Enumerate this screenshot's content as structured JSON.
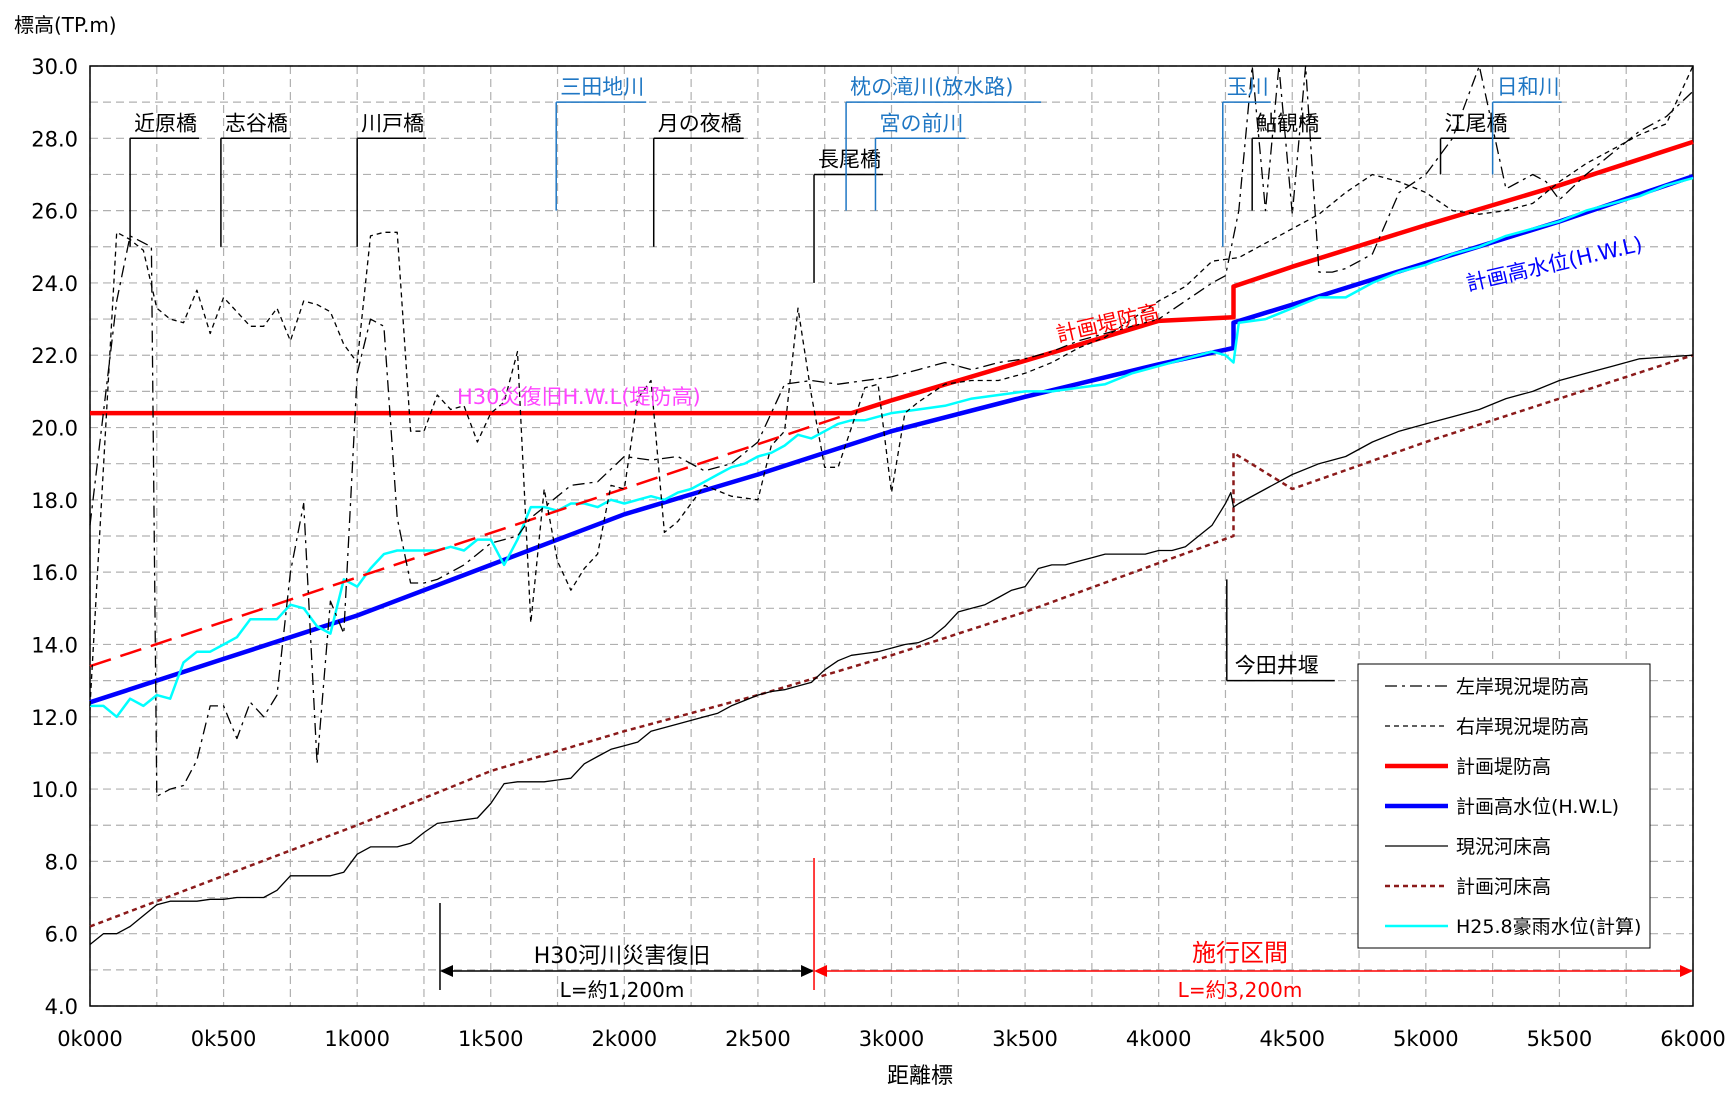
{
  "chart_data": {
    "type": "line",
    "ylabel": "標高(TP.m)",
    "xlabel": "距離標",
    "xlim": [
      0,
      6000
    ],
    "ylim": [
      4.0,
      30.0
    ],
    "grid": true,
    "x_ticks": [
      {
        "value": 0,
        "label": "0k000"
      },
      {
        "value": 500,
        "label": "0k500"
      },
      {
        "value": 1000,
        "label": "1k000"
      },
      {
        "value": 1500,
        "label": "1k500"
      },
      {
        "value": 2000,
        "label": "2k000"
      },
      {
        "value": 2500,
        "label": "2k500"
      },
      {
        "value": 3000,
        "label": "3k000"
      },
      {
        "value": 3500,
        "label": "3k500"
      },
      {
        "value": 4000,
        "label": "4k000"
      },
      {
        "value": 4500,
        "label": "4k500"
      },
      {
        "value": 5000,
        "label": "5k000"
      },
      {
        "value": 5500,
        "label": "5k500"
      },
      {
        "value": 6000,
        "label": "6k000"
      }
    ],
    "y_ticks": [
      {
        "value": 4,
        "label": "4.0"
      },
      {
        "value": 6,
        "label": "6.0"
      },
      {
        "value": 8,
        "label": "8.0"
      },
      {
        "value": 10,
        "label": "10.0"
      },
      {
        "value": 12,
        "label": "12.0"
      },
      {
        "value": 14,
        "label": "14.0"
      },
      {
        "value": 16,
        "label": "16.0"
      },
      {
        "value": 18,
        "label": "18.0"
      },
      {
        "value": 20,
        "label": "20.0"
      },
      {
        "value": 22,
        "label": "22.0"
      },
      {
        "value": 24,
        "label": "24.0"
      },
      {
        "value": 26,
        "label": "26.0"
      },
      {
        "value": 28,
        "label": "28.0"
      },
      {
        "value": 30,
        "label": "30.0"
      }
    ],
    "legend": {
      "position": "bottom-right"
    },
    "series": [
      {
        "name": "左岸現況堤防高",
        "color": "#000000",
        "style": "dashdot",
        "x": [
          0,
          100,
          150,
          230,
          250,
          300,
          350,
          400,
          450,
          500,
          550,
          600,
          650,
          700,
          750,
          800,
          850,
          900,
          950,
          1000,
          1050,
          1100,
          1150,
          1200,
          1250,
          1300,
          1350,
          1400,
          1450,
          1500,
          1550,
          1600,
          1650,
          1700,
          1800,
          1900,
          2000,
          2100,
          2200,
          2300,
          2400,
          2500,
          2600,
          2700,
          2800,
          2900,
          3000,
          3100,
          3200,
          3300,
          3400,
          3500,
          3600,
          3700,
          3800,
          3900,
          4000,
          4100,
          4200,
          4250,
          4300,
          4350,
          4400,
          4450,
          4500,
          4550,
          4600,
          4650,
          4700,
          4800,
          4900,
          5000,
          5100,
          5200,
          5300,
          5400,
          5450,
          5500,
          5600,
          5700,
          5800,
          5900,
          6000
        ],
        "y": [
          17.3,
          23.5,
          25.3,
          25.0,
          9.8,
          10.0,
          10.1,
          10.8,
          12.3,
          12.3,
          11.4,
          12.4,
          12.0,
          12.6,
          16.0,
          17.9,
          10.7,
          15.2,
          14.3,
          21.5,
          23.0,
          22.8,
          17.5,
          15.7,
          15.7,
          15.8,
          16.0,
          16.2,
          16.5,
          16.8,
          16.9,
          17.0,
          17.5,
          17.8,
          18.4,
          18.5,
          19.2,
          19.1,
          19.2,
          18.8,
          19.0,
          19.6,
          21.2,
          21.3,
          21.2,
          21.3,
          21.4,
          21.6,
          21.8,
          21.6,
          21.8,
          21.9,
          22.1,
          22.4,
          22.6,
          22.8,
          23.0,
          23.5,
          24.0,
          24.2,
          26.0,
          31.0,
          26.0,
          31.0,
          25.9,
          31.0,
          24.3,
          24.3,
          24.4,
          24.8,
          26.5,
          27.0,
          28.0,
          31.0,
          26.6,
          27.0,
          26.8,
          26.3,
          27.0,
          27.6,
          28.2,
          28.6,
          29.3
        ]
      },
      {
        "name": "右岸現況堤防高",
        "color": "#000000",
        "style": "dashed",
        "x": [
          0,
          100,
          150,
          200,
          250,
          300,
          350,
          400,
          450,
          500,
          550,
          600,
          650,
          700,
          750,
          800,
          850,
          900,
          950,
          1000,
          1050,
          1100,
          1150,
          1200,
          1250,
          1300,
          1350,
          1400,
          1450,
          1500,
          1550,
          1600,
          1650,
          1700,
          1750,
          1800,
          1850,
          1900,
          1950,
          2000,
          2050,
          2100,
          2150,
          2200,
          2300,
          2400,
          2500,
          2550,
          2600,
          2650,
          2700,
          2750,
          2800,
          2900,
          2950,
          3000,
          3050,
          3100,
          3200,
          3300,
          3400,
          3500,
          3600,
          3700,
          3800,
          3900,
          4000,
          4100,
          4200,
          4300,
          4400,
          4500,
          4600,
          4700,
          4800,
          4900,
          5000,
          5100,
          5200,
          5300,
          5400,
          5500,
          5600,
          5700,
          5800,
          5900,
          6000
        ],
        "y": [
          12.3,
          25.4,
          25.2,
          24.9,
          23.3,
          23.0,
          22.9,
          23.8,
          22.6,
          23.6,
          23.2,
          22.8,
          22.8,
          23.3,
          22.4,
          23.5,
          23.4,
          23.2,
          22.3,
          21.8,
          25.3,
          25.4,
          25.4,
          19.9,
          19.9,
          20.9,
          20.5,
          20.6,
          19.6,
          20.4,
          20.7,
          22.1,
          14.6,
          18.3,
          16.3,
          15.5,
          16.1,
          16.5,
          18.4,
          18.3,
          20.8,
          21.3,
          17.1,
          17.4,
          18.4,
          18.1,
          18.0,
          19.5,
          19.9,
          23.3,
          20.9,
          18.9,
          18.9,
          21.1,
          21.2,
          18.2,
          20.4,
          20.7,
          21.2,
          21.3,
          21.3,
          21.5,
          21.8,
          22.2,
          22.5,
          23.0,
          23.5,
          23.9,
          24.6,
          24.7,
          25.1,
          25.5,
          25.9,
          26.5,
          27.0,
          26.8,
          26.5,
          26.0,
          25.9,
          26.0,
          26.2,
          26.8,
          27.3,
          27.7,
          28.1,
          28.4,
          30.0
        ]
      },
      {
        "name": "計画堤防高",
        "color": "#ff0000",
        "style": "solid",
        "width": 4.5,
        "x": [
          0,
          100,
          500,
          1000,
          1500,
          2000,
          2500,
          2700,
          2850,
          3000,
          3500,
          4000,
          4280,
          4280,
          4500,
          5000,
          5500,
          6000
        ],
        "y": [
          20.4,
          20.4,
          20.4,
          20.4,
          20.4,
          20.4,
          20.4,
          20.4,
          20.4,
          20.75,
          21.85,
          22.95,
          23.05,
          23.9,
          24.45,
          25.6,
          26.7,
          27.9
        ]
      },
      {
        "name": "",
        "color": "#ff0000",
        "style": "longdash",
        "width": 2.5,
        "x": [
          0,
          2850
        ],
        "y": [
          13.4,
          20.4
        ]
      },
      {
        "name": "計画高水位(H.W.L)",
        "color": "#0000ff",
        "style": "solid",
        "width": 4.5,
        "x": [
          0,
          500,
          1000,
          1500,
          2000,
          2500,
          3000,
          3500,
          4000,
          4280,
          4280,
          4500,
          5000,
          5500,
          6000
        ],
        "y": [
          12.4,
          13.6,
          14.8,
          16.2,
          17.6,
          18.7,
          19.9,
          20.85,
          21.75,
          22.2,
          22.9,
          23.4,
          24.55,
          25.7,
          26.95
        ]
      },
      {
        "name": "現況河床高",
        "color": "#000000",
        "style": "solid",
        "width": 1.3,
        "x": [
          0,
          50,
          100,
          150,
          200,
          250,
          300,
          350,
          400,
          450,
          500,
          550,
          600,
          650,
          700,
          750,
          800,
          850,
          900,
          950,
          1000,
          1050,
          1100,
          1150,
          1200,
          1250,
          1300,
          1350,
          1400,
          1450,
          1500,
          1550,
          1600,
          1650,
          1700,
          1750,
          1800,
          1850,
          1900,
          1950,
          2000,
          2050,
          2100,
          2150,
          2200,
          2250,
          2300,
          2350,
          2400,
          2450,
          2500,
          2550,
          2600,
          2650,
          2700,
          2750,
          2800,
          2850,
          2900,
          2950,
          3000,
          3050,
          3100,
          3150,
          3200,
          3250,
          3300,
          3350,
          3400,
          3450,
          3500,
          3550,
          3600,
          3650,
          3700,
          3750,
          3800,
          3850,
          3900,
          3950,
          4000,
          4050,
          4100,
          4150,
          4200,
          4250,
          4270,
          4280,
          4300,
          4400,
          4500,
          4600,
          4700,
          4800,
          4900,
          5000,
          5100,
          5200,
          5300,
          5400,
          5500,
          5600,
          5700,
          5800,
          5900,
          6000
        ],
        "y": [
          5.7,
          6.0,
          6.0,
          6.2,
          6.5,
          6.8,
          6.9,
          6.9,
          6.9,
          6.95,
          6.95,
          7.0,
          7.0,
          7.0,
          7.2,
          7.6,
          7.6,
          7.6,
          7.6,
          7.7,
          8.2,
          8.4,
          8.4,
          8.4,
          8.5,
          8.8,
          9.05,
          9.1,
          9.15,
          9.2,
          9.6,
          10.15,
          10.2,
          10.2,
          10.2,
          10.25,
          10.3,
          10.7,
          10.9,
          11.1,
          11.2,
          11.3,
          11.6,
          11.7,
          11.8,
          11.9,
          12.0,
          12.1,
          12.3,
          12.45,
          12.6,
          12.7,
          12.75,
          12.85,
          12.95,
          13.3,
          13.55,
          13.7,
          13.75,
          13.8,
          13.9,
          14.0,
          14.05,
          14.2,
          14.5,
          14.9,
          15.0,
          15.1,
          15.3,
          15.5,
          15.6,
          16.1,
          16.2,
          16.2,
          16.3,
          16.4,
          16.5,
          16.5,
          16.5,
          16.5,
          16.6,
          16.6,
          16.7,
          17.0,
          17.3,
          17.9,
          18.2,
          17.8,
          17.9,
          18.3,
          18.7,
          19.0,
          19.2,
          19.6,
          19.9,
          20.1,
          20.3,
          20.5,
          20.8,
          21.0,
          21.3,
          21.5,
          21.7,
          21.9,
          21.95,
          22.0
        ]
      },
      {
        "name": "計画河床高",
        "color": "#8b1a1a",
        "style": "dashed",
        "width": 2.5,
        "x": [
          0,
          500,
          1000,
          1500,
          2000,
          2500,
          3000,
          3500,
          4000,
          4280,
          4280,
          4500,
          5000,
          5500,
          6000
        ],
        "y": [
          6.2,
          7.6,
          9.0,
          10.5,
          11.6,
          12.6,
          13.7,
          14.9,
          16.25,
          17.0,
          19.3,
          18.3,
          19.6,
          20.8,
          22.0
        ]
      },
      {
        "name": "H25.8豪雨水位(計算)",
        "color": "#00ffff",
        "style": "solid",
        "width": 2.5,
        "x": [
          0,
          50,
          100,
          150,
          200,
          250,
          300,
          350,
          400,
          450,
          500,
          550,
          600,
          650,
          700,
          750,
          800,
          850,
          900,
          950,
          1000,
          1050,
          1100,
          1150,
          1200,
          1250,
          1300,
          1350,
          1400,
          1450,
          1500,
          1550,
          1600,
          1650,
          1700,
          1750,
          1800,
          1850,
          1900,
          1950,
          2000,
          2050,
          2100,
          2150,
          2200,
          2250,
          2300,
          2350,
          2400,
          2450,
          2500,
          2550,
          2600,
          2650,
          2700,
          2750,
          2800,
          2850,
          2900,
          2950,
          3000,
          3100,
          3200,
          3300,
          3400,
          3500,
          3600,
          3700,
          3800,
          3900,
          4000,
          4100,
          4200,
          4250,
          4280,
          4300,
          4400,
          4500,
          4600,
          4700,
          4800,
          4900,
          5000,
          5100,
          5200,
          5300,
          5400,
          5500,
          5600,
          5700,
          5800,
          5900,
          6000
        ],
        "y": [
          12.3,
          12.3,
          12.0,
          12.5,
          12.3,
          12.6,
          12.5,
          13.5,
          13.8,
          13.8,
          14.0,
          14.2,
          14.7,
          14.7,
          14.7,
          15.1,
          15.0,
          14.5,
          14.3,
          15.8,
          15.6,
          16.1,
          16.5,
          16.6,
          16.6,
          16.6,
          16.6,
          16.7,
          16.6,
          16.9,
          16.9,
          16.2,
          16.9,
          17.8,
          17.8,
          17.7,
          17.9,
          17.9,
          17.8,
          18.0,
          17.9,
          18.0,
          18.1,
          18.0,
          18.2,
          18.3,
          18.5,
          18.7,
          18.9,
          19.0,
          19.2,
          19.3,
          19.5,
          19.8,
          19.7,
          19.9,
          20.1,
          20.2,
          20.2,
          20.3,
          20.4,
          20.5,
          20.6,
          20.8,
          20.9,
          21.0,
          21.0,
          21.1,
          21.2,
          21.5,
          21.7,
          21.9,
          22.1,
          22.0,
          21.8,
          22.9,
          23.0,
          23.3,
          23.6,
          23.6,
          24.0,
          24.3,
          24.5,
          24.8,
          25.0,
          25.3,
          25.5,
          25.7,
          26.0,
          26.2,
          26.4,
          26.7,
          26.9
        ]
      }
    ],
    "annotations": [
      {
        "id": "chikahara",
        "text": "近原橋",
        "color": "#000000",
        "x": 150,
        "y_from": 25.0,
        "y_to": 28.0
      },
      {
        "id": "shiya",
        "text": "志谷橋",
        "color": "#000000",
        "x": 490,
        "y_from": 25.0,
        "y_to": 28.0
      },
      {
        "id": "kawado",
        "text": "川戸橋",
        "color": "#000000",
        "x": 1000,
        "y_from": 25.0,
        "y_to": 28.0
      },
      {
        "id": "mitachi",
        "text": "三田地川",
        "color": "#1f77c4",
        "x": 1745,
        "y_from": 26.0,
        "y_to": 29.0
      },
      {
        "id": "tsukinoyo",
        "text": "月の夜橋",
        "color": "#000000",
        "x": 2110,
        "y_from": 25.0,
        "y_to": 28.0
      },
      {
        "id": "nagao",
        "text": "長尾橋",
        "color": "#000000",
        "x": 2710,
        "y_from": 24.0,
        "y_to": 27.0
      },
      {
        "id": "makuranotaki",
        "text": "枕の滝川(放水路)",
        "color": "#1f77c4",
        "x": 2830,
        "y_from": 26.0,
        "y_to": 29.0
      },
      {
        "id": "miyanomae",
        "text": "宮の前川",
        "color": "#1f77c4",
        "x": 2940,
        "y_from": 26.0,
        "y_to": 28.0
      },
      {
        "id": "tamagawa",
        "text": "玉川",
        "color": "#1f77c4",
        "x": 4240,
        "y_from": 25.0,
        "y_to": 29.0
      },
      {
        "id": "ayumi",
        "text": "鮎観橋",
        "color": "#000000",
        "x": 4350,
        "y_from": 26.0,
        "y_to": 28.0
      },
      {
        "id": "enoo",
        "text": "江尾橋",
        "color": "#000000",
        "x": 5055,
        "y_from": 27.0,
        "y_to": 28.0
      },
      {
        "id": "hiyori",
        "text": "日和川",
        "color": "#1f77c4",
        "x": 5250,
        "y_from": 27.0,
        "y_to": 29.0
      },
      {
        "id": "imada",
        "text": "今田井堰",
        "color": "#000000",
        "x": 4255,
        "y_from": 15.8,
        "y_to": 13.0
      }
    ],
    "labels": {
      "keikaku_teibou": {
        "text": "計画堤防高",
        "color": "#ff0000"
      },
      "keikaku_hwl": {
        "text": "計画高水位(H.W.L)",
        "color": "#0000ff"
      },
      "h30_hwl": {
        "text": "H30災復旧H.W.L(堤防高)",
        "color": "#ff44ff"
      }
    },
    "ranges": [
      {
        "id": "h30",
        "title": "H30河川災害復旧",
        "length": "L=約1,200m",
        "color": "#000000",
        "x_from": 1310,
        "x_to": 2710
      },
      {
        "id": "sekou",
        "title": "施行区間",
        "length": "L=約3,200m",
        "color": "#ff0000",
        "x_from": 2710,
        "x_to": 6000
      }
    ]
  }
}
